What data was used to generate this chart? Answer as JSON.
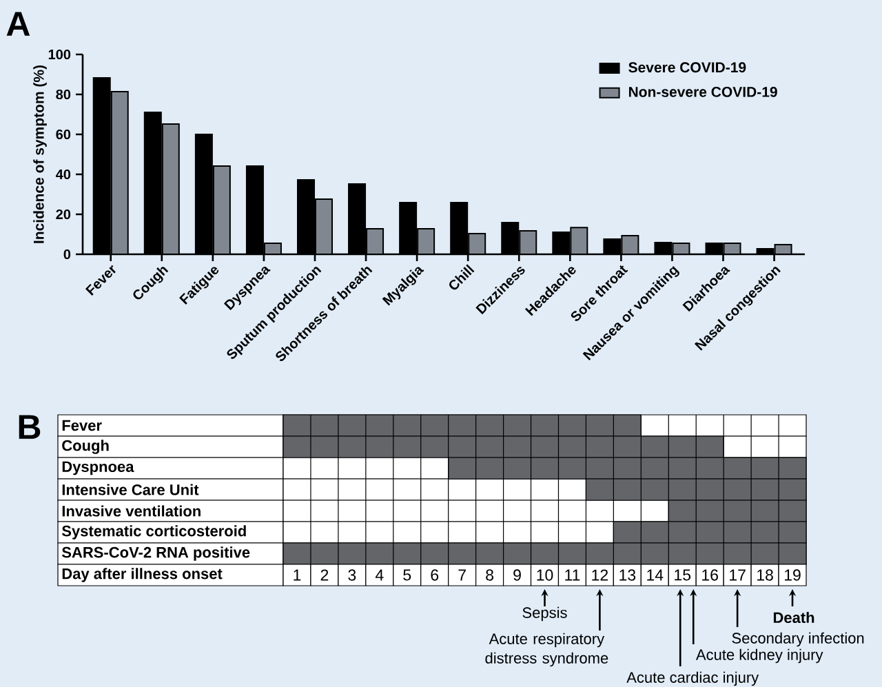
{
  "chart_data": [
    {
      "type": "bar",
      "title": "A",
      "ylabel": "Incidence of symptom (%)",
      "categories": [
        "Fever",
        "Cough",
        "Fatigue",
        "Dyspnea",
        "Sputum production",
        "Shortness of breath",
        "Myalgia",
        "Chill",
        "Dizziness",
        "Headache",
        "Sore throat",
        "Nausea or vomiting",
        "Diarhoea",
        "Nasal congestion"
      ],
      "series": [
        {
          "name": "Severe COVID-19",
          "color": "#000000",
          "values": [
            88.3,
            71.0,
            60.0,
            44.1,
            37.2,
            35.2,
            25.9,
            25.9,
            15.9,
            11.0,
            7.6,
            5.9,
            5.5,
            2.8
          ]
        },
        {
          "name": "Non-severe COVID-19",
          "color": "#808790",
          "values": [
            81.4,
            65.2,
            44.1,
            5.5,
            27.6,
            12.8,
            12.8,
            10.3,
            11.7,
            13.4,
            9.3,
            5.5,
            5.5,
            4.8
          ]
        }
      ],
      "ylim": [
        0,
        100
      ],
      "yticks": [
        0,
        20,
        40,
        60,
        80,
        100
      ],
      "legend": "top right"
    },
    {
      "type": "bar",
      "orientation": "horizontal",
      "title": "B",
      "xlabel": "Day after illness onset",
      "categories": [
        "Fever",
        "Cough",
        "Dyspnoea",
        "Intensive Care Unit",
        "Invasive ventilation",
        "Systematic corticosteroid",
        "SARS-CoV-2 RNA positive"
      ],
      "series": [
        {
          "color": "#636569",
          "values": [
            13,
            16,
            13,
            8,
            5,
            7,
            19
          ],
          "base": [
            0.5,
            0.5,
            6.5,
            11.5,
            14.5,
            12.5,
            0.5
          ]
        }
      ],
      "xlim": [
        0.5,
        19.5
      ],
      "xticks": [
        1,
        2,
        3,
        4,
        5,
        6,
        7,
        8,
        9,
        10,
        11,
        12,
        13,
        14,
        15,
        16,
        17,
        18,
        19
      ],
      "grid": "x",
      "annotations": [
        "Sepsis",
        "Acute respiratory distress syndrome",
        "Acute cardiac injury",
        "Acute kidney injury",
        "Secondary infection",
        "**Death**"
      ]
    }
  ]
}
